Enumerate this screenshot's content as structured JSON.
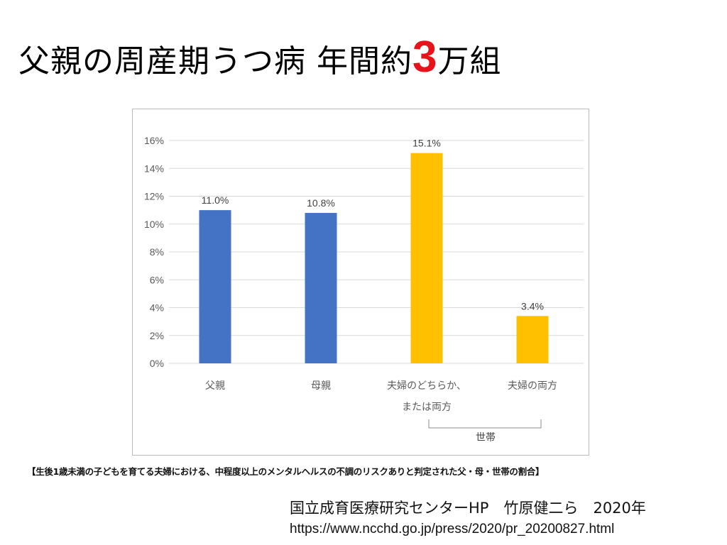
{
  "slide": {
    "title_prefix": "父親の周産期うつ病 年間約",
    "title_number": "3",
    "title_suffix": "万組",
    "caption": "【生後1歳未満の子どもを育てる夫婦における、中程度以上のメンタルヘルスの不調のリスクありと判定された父・母・世帯の割合】",
    "source": "国立成育医療研究センターHP　竹原健二ら　2020年",
    "url": "https://www.ncchd.go.jp/press/2020/pr_20200827.html"
  },
  "chart_data": {
    "type": "bar",
    "categories": [
      [
        "父親"
      ],
      [
        "母親"
      ],
      [
        "夫婦のどちらか、",
        "または両方"
      ],
      [
        "夫婦の両方"
      ]
    ],
    "values": [
      11.0,
      10.8,
      15.1,
      3.4
    ],
    "data_labels": [
      "11.0%",
      "10.8%",
      "15.1%",
      "3.4%"
    ],
    "colors": [
      "#4472c4",
      "#4472c4",
      "#ffc000",
      "#ffc000"
    ],
    "ylim": [
      0,
      16
    ],
    "yticks": [
      "0%",
      "2%",
      "4%",
      "6%",
      "8%",
      "10%",
      "12%",
      "14%",
      "16%"
    ],
    "ytick_values": [
      0,
      2,
      4,
      6,
      8,
      10,
      12,
      14,
      16
    ],
    "group_label": "世帯",
    "grid": true,
    "title": "",
    "xlabel": "",
    "ylabel": ""
  }
}
